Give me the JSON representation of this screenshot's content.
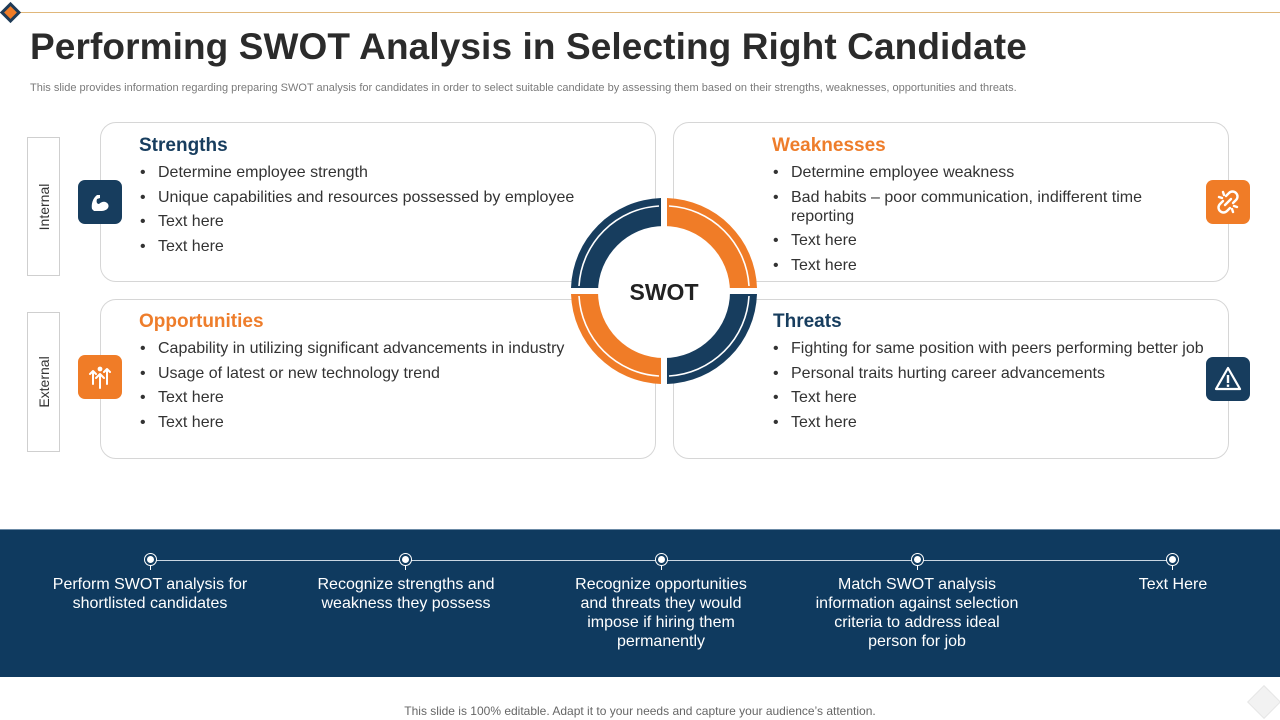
{
  "header": {
    "title": "Performing SWOT Analysis in Selecting Right Candidate",
    "subtitle": "This slide provides information regarding preparing SWOT analysis for candidates in order to select suitable candidate by assessing them based on their strengths, weaknesses, opportunities and threats."
  },
  "side_labels": {
    "internal": "Internal",
    "external": "External"
  },
  "center": {
    "label": "SWOT"
  },
  "quadrants": {
    "strengths": {
      "heading": "Strengths",
      "icon": "flexed-arm-icon",
      "items": [
        "Determine employee strength",
        "Unique capabilities and resources possessed by employee",
        "Text here",
        "Text here"
      ]
    },
    "weaknesses": {
      "heading": "Weaknesses",
      "icon": "broken-chain-icon",
      "items": [
        "Determine employee weakness",
        "Bad habits – poor communication,  indifferent time reporting",
        "Text here",
        "Text here"
      ]
    },
    "opportunities": {
      "heading": "Opportunities",
      "icon": "growth-arrows-icon",
      "items": [
        "Capability in utilizing significant advancements in industry",
        "Usage of latest or new technology trend",
        "Text here",
        "Text here"
      ]
    },
    "threats": {
      "heading": "Threats",
      "icon": "warning-triangle-icon",
      "items": [
        "Fighting for same position with peers performing better job",
        "Personal traits hurting  career advancements",
        "Text here",
        "Text here"
      ]
    }
  },
  "process": {
    "steps": [
      "Perform SWOT analysis for shortlisted candidates",
      "Recognize strengths and weakness they possess",
      "Recognize opportunities and threats they would impose if hiring them permanently",
      "Match SWOT analysis information against selection criteria to address ideal person for job",
      "Text Here"
    ]
  },
  "footer": {
    "note": "This slide is 100% editable. Adapt it to your needs and capture your audience’s attention."
  },
  "colors": {
    "navy": "#173d5e",
    "orange": "#f07c27",
    "band": "#0f3a5f"
  }
}
